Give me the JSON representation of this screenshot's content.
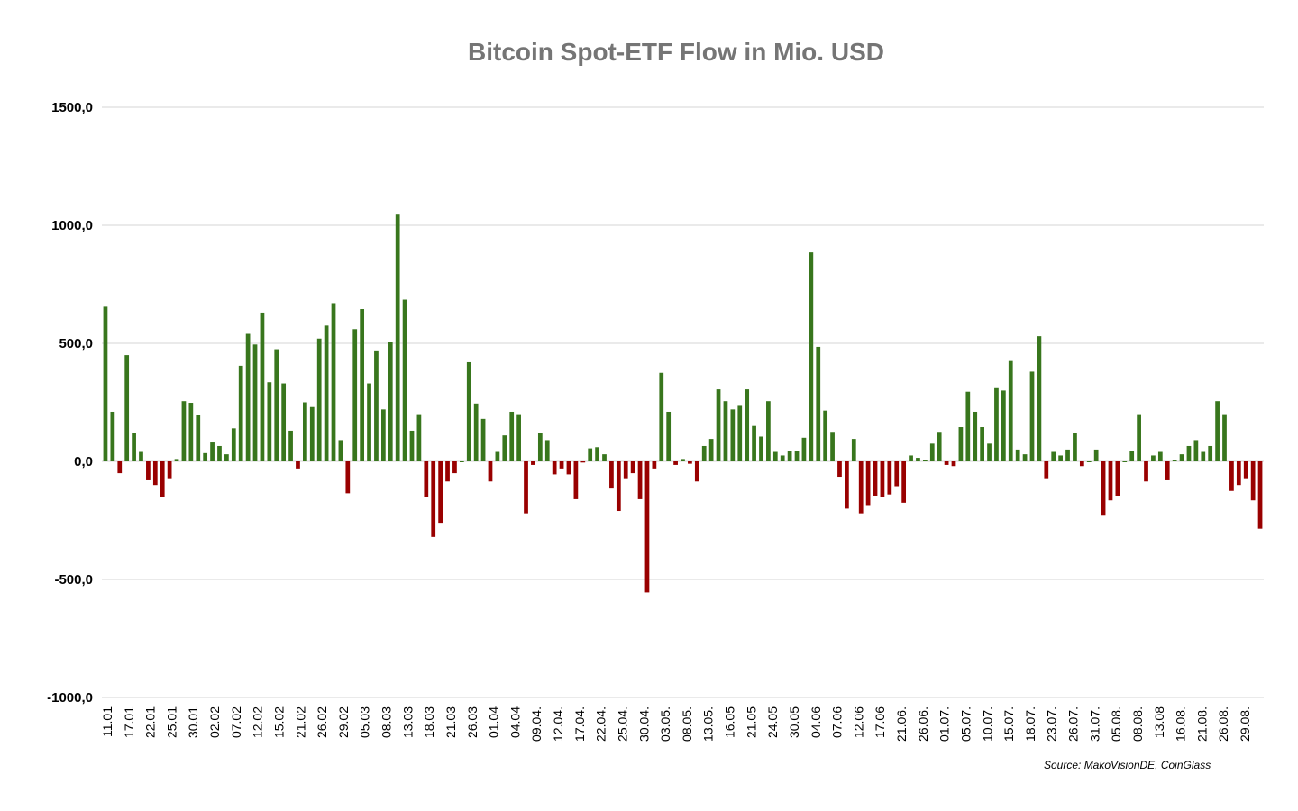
{
  "chart_data": {
    "type": "bar",
    "title": "Bitcoin Spot-ETF Flow in Mio. USD",
    "source": "Source: MakoVisionDE, CoinGlass",
    "ylim": [
      -1000,
      1500
    ],
    "yticks": [
      1500,
      1000,
      500,
      0,
      -500,
      -1000
    ],
    "ytick_labels": [
      "1500,0",
      "1000,0",
      "500,0",
      "0,0",
      "-500,0",
      "-1000,0"
    ],
    "grid": true,
    "xtick_labels": [
      "11.01",
      "17.01",
      "22.01",
      "25.01",
      "30.01",
      "02.02",
      "07.02",
      "12.02",
      "15.02",
      "21.02",
      "26.02",
      "29.02",
      "05.03",
      "08.03",
      "13.03",
      "18.03",
      "21.03",
      "26.03",
      "01.04",
      "04.04",
      "09.04.",
      "12.04.",
      "17.04.",
      "22.04.",
      "25.04.",
      "30.04.",
      "03.05.",
      "08.05.",
      "13.05.",
      "16.05",
      "21.05",
      "24.05",
      "30.05",
      "04.06",
      "07.06",
      "12.06",
      "17.06",
      "21.06.",
      "26.06.",
      "01.07.",
      "05.07.",
      "10.07.",
      "15.07.",
      "18.07.",
      "23.07.",
      "26.07.",
      "31.07.",
      "05.08.",
      "08.08.",
      "13.08",
      "16.08.",
      "21.08.",
      "26.08.",
      "29.08."
    ],
    "colors": {
      "positive": "#38761d",
      "negative": "#990000"
    },
    "series": [
      {
        "values": [
          655,
          210,
          -50,
          450,
          120,
          40,
          -80,
          -100,
          -150,
          -75,
          10,
          255,
          248,
          195,
          35,
          80,
          65,
          30,
          140,
          405,
          540,
          495,
          630,
          335,
          475,
          330,
          130,
          -30,
          250,
          230,
          520,
          575,
          670,
          90,
          -135,
          560,
          645,
          330,
          470,
          220,
          505,
          1045,
          685,
          130,
          200,
          -150,
          -320,
          -260,
          -85,
          -50,
          0,
          420,
          245,
          180,
          -85,
          40,
          110,
          210,
          200,
          -220,
          -15,
          120,
          90,
          -55,
          -30,
          -55,
          -160,
          -5,
          55,
          60,
          30,
          -115,
          -210,
          -75,
          -50,
          -160,
          -555,
          -30,
          375,
          210,
          -15,
          10,
          -10,
          -85,
          65,
          95,
          305,
          255,
          220,
          235,
          305,
          150,
          105,
          255,
          40,
          25,
          45,
          45,
          100,
          885,
          485,
          215,
          125,
          -65,
          -200,
          95,
          -220,
          -185,
          -145,
          -150,
          -140,
          -105,
          -175,
          25,
          15,
          5,
          75,
          125,
          -15,
          -20,
          145,
          295,
          210,
          145,
          75,
          310,
          300,
          425,
          50,
          30,
          380,
          530,
          -75,
          40,
          25,
          50,
          120,
          -20,
          0,
          50,
          -230,
          -165,
          -145,
          0,
          45,
          200,
          -85,
          25,
          40,
          -80,
          5,
          30,
          65,
          90,
          40,
          65,
          255,
          200,
          -125,
          -100,
          -75,
          -165,
          -285
        ]
      }
    ]
  }
}
